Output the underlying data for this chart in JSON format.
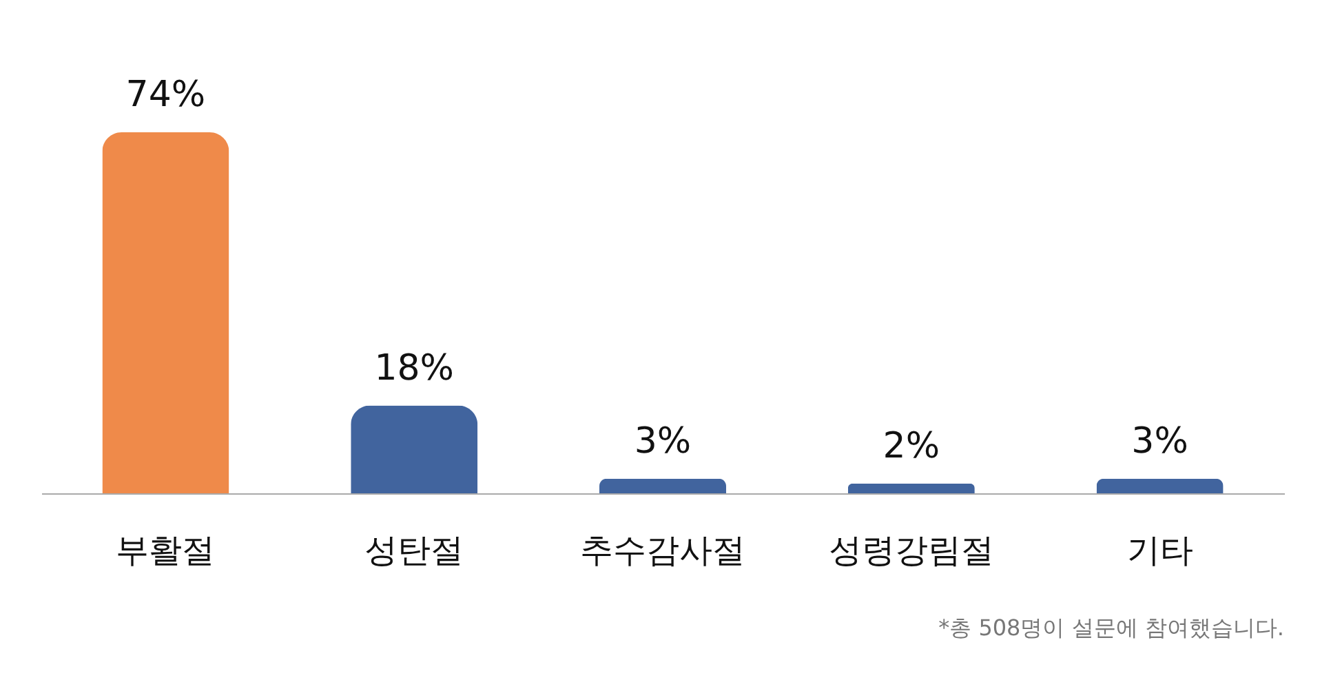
{
  "chart_data": {
    "type": "bar",
    "categories": [
      "부활절",
      "성탄절",
      "추수감사절",
      "성령강림절",
      "기타"
    ],
    "values": [
      74,
      18,
      3,
      2,
      3
    ],
    "colors": [
      "#ef8a4a",
      "#41649e",
      "#41649e",
      "#41649e",
      "#41649e"
    ],
    "value_labels": [
      "74%",
      "18%",
      "3%",
      "2%",
      "3%"
    ],
    "annotations": [
      "*총 508명이 설문에 참여했습니다."
    ]
  }
}
